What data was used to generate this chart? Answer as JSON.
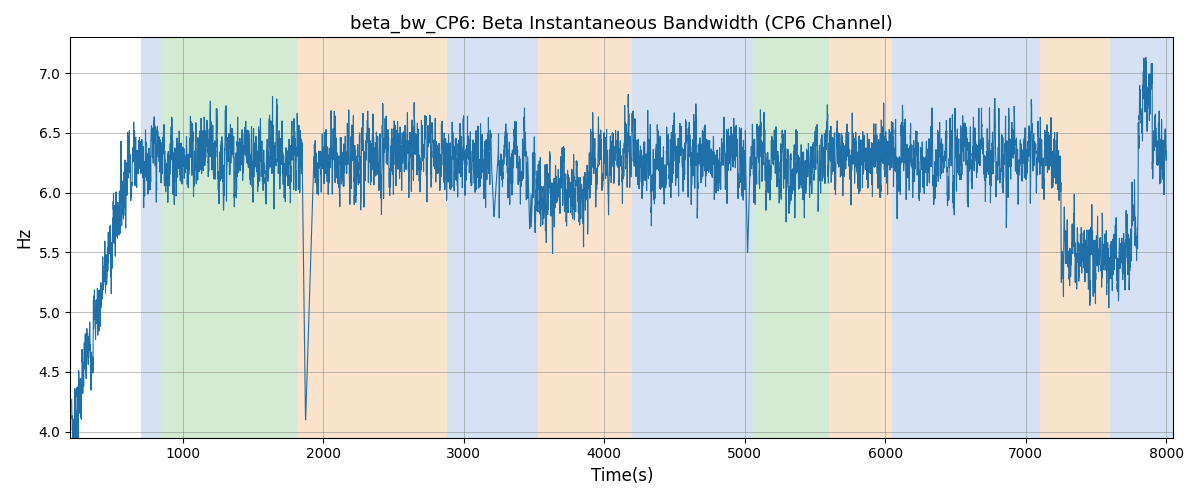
{
  "title": "beta_bw_CP6: Beta Instantaneous Bandwidth (CP6 Channel)",
  "xlabel": "Time(s)",
  "ylabel": "Hz",
  "xlim": [
    200,
    8050
  ],
  "ylim": [
    3.95,
    7.3
  ],
  "line_color": "#1f6fa8",
  "line_width": 0.8,
  "bg_color": "white",
  "grid": true,
  "bands": [
    {
      "start": 700,
      "end": 850,
      "color": "#aec6e8",
      "alpha": 0.5
    },
    {
      "start": 850,
      "end": 1820,
      "color": "#a8d8a8",
      "alpha": 0.5
    },
    {
      "start": 1820,
      "end": 2880,
      "color": "#f5c99a",
      "alpha": 0.5
    },
    {
      "start": 2880,
      "end": 3530,
      "color": "#aec6e8",
      "alpha": 0.5
    },
    {
      "start": 3530,
      "end": 4200,
      "color": "#f5c99a",
      "alpha": 0.5
    },
    {
      "start": 4200,
      "end": 4900,
      "color": "#aec6e8",
      "alpha": 0.5
    },
    {
      "start": 4900,
      "end": 5060,
      "color": "#aec6e8",
      "alpha": 0.5
    },
    {
      "start": 5060,
      "end": 5600,
      "color": "#a8d8a8",
      "alpha": 0.5
    },
    {
      "start": 5600,
      "end": 6050,
      "color": "#f5c99a",
      "alpha": 0.5
    },
    {
      "start": 6050,
      "end": 7100,
      "color": "#aec6e8",
      "alpha": 0.5
    },
    {
      "start": 7100,
      "end": 7600,
      "color": "#f5c99a",
      "alpha": 0.5
    },
    {
      "start": 7600,
      "end": 8050,
      "color": "#aec6e8",
      "alpha": 0.5
    }
  ],
  "t_start": 210,
  "t_end": 8000,
  "n_points": 7800,
  "seed": 7
}
